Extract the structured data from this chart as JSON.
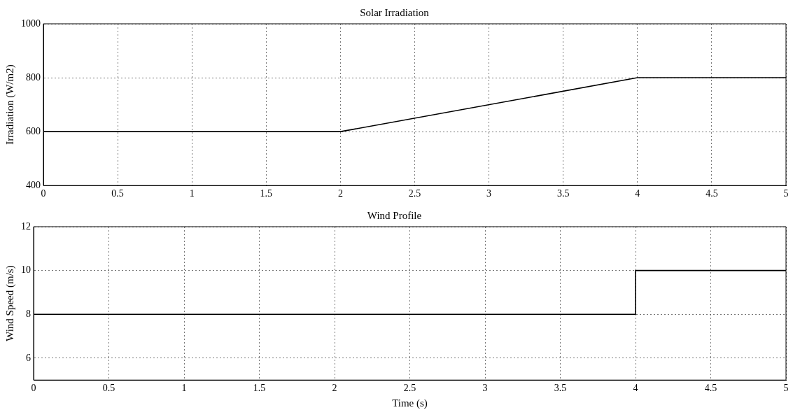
{
  "chart_data": [
    {
      "type": "line",
      "title": "Solar Irradiation",
      "ylabel": "Irradiation (W/m2)",
      "series": [
        {
          "color": "#000000",
          "x": [
            0,
            2,
            4,
            5
          ],
          "values": [
            600,
            600,
            800,
            800
          ]
        }
      ],
      "xlim": [
        0,
        5
      ],
      "xticks": [
        0,
        0.5,
        1,
        1.5,
        2,
        2.5,
        3,
        3.5,
        4,
        4.5,
        5
      ],
      "ylim": [
        400,
        1000
      ],
      "yticks": [
        400,
        600,
        800,
        1000
      ],
      "grid": true,
      "legend": false,
      "marker": "none",
      "line_style": "solid"
    },
    {
      "type": "line",
      "title": "Wind Profile",
      "xlabel": "Time (s)",
      "ylabel": "Wind Speed (m/s)",
      "series": [
        {
          "color": "#000000",
          "x": [
            0,
            4,
            4,
            5
          ],
          "values": [
            8,
            8,
            10,
            10
          ]
        }
      ],
      "xlim": [
        0,
        5
      ],
      "xticks": [
        0,
        0.5,
        1,
        1.5,
        2,
        2.5,
        3,
        3.5,
        4,
        4.5,
        5
      ],
      "ylim": [
        5,
        12
      ],
      "yticks": [
        6,
        8,
        10,
        12
      ],
      "grid": true,
      "legend": false,
      "marker": "none",
      "line_style": "solid"
    }
  ]
}
